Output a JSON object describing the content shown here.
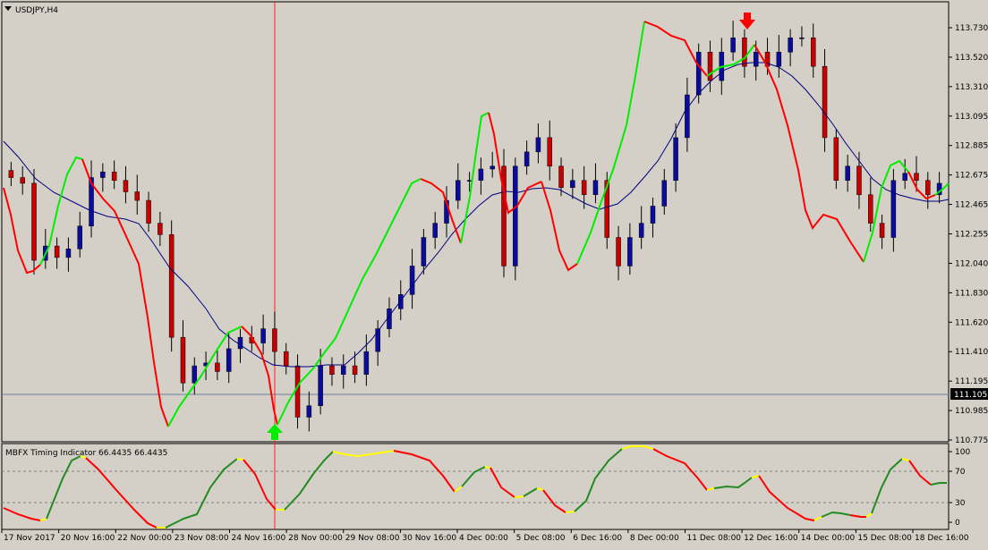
{
  "window": {
    "title": "USDJPY,H4"
  },
  "colors": {
    "background": "#d4d0c8",
    "bull": "#0b0b9e",
    "bear": "#c80000",
    "wick": "#000000",
    "ma": "#00007f",
    "signal_up": "#00ee00",
    "signal_down": "#ff0000",
    "osc_up": "#228b22",
    "osc_down": "#ff0000",
    "osc_flat": "#ffff00"
  },
  "price_axis": {
    "labels": [
      "113.730",
      "113.520",
      "113.310",
      "113.095",
      "112.885",
      "112.675",
      "112.465",
      "112.255",
      "112.040",
      "111.830",
      "111.620",
      "111.410",
      "111.195",
      "110.985",
      "110.775"
    ],
    "current_price": "111.105"
  },
  "indicator": {
    "title": "MBFX Timing Indicator 66.4435 66.4435",
    "levels": [
      "100",
      "70",
      "30",
      "0"
    ]
  },
  "time_axis": {
    "labels": [
      "17 Nov 2017",
      "20 Nov 16:00",
      "22 Nov 00:00",
      "23 Nov 08:00",
      "24 Nov 16:00",
      "28 Nov 00:00",
      "29 Nov 08:00",
      "30 Nov 16:00",
      "4 Dec 00:00",
      "5 Dec 08:00",
      "6 Dec 16:00",
      "8 Dec 00:00",
      "11 Dec 08:00",
      "12 Dec 16:00",
      "14 Dec 00:00",
      "15 Dec 08:00",
      "18 Dec 16:00"
    ]
  },
  "signals": [
    {
      "name": "buy-arrow-icon",
      "direction": "up"
    },
    {
      "name": "sell-arrow-icon",
      "direction": "down"
    }
  ],
  "chart_data": {
    "type": "candlestick",
    "symbol": "USDJPY",
    "timeframe": "H4",
    "price_range": [
      110.78,
      113.84
    ],
    "current_price": 111.105,
    "candles_close": [
      112.62,
      112.58,
      112.04,
      112.14,
      112.06,
      112.12,
      112.28,
      112.62,
      112.66,
      112.6,
      112.52,
      112.46,
      112.3,
      112.22,
      111.5,
      111.18,
      111.3,
      111.32,
      111.26,
      111.42,
      111.5,
      111.46,
      111.56,
      111.4,
      111.3,
      110.94,
      111.02,
      111.3,
      111.24,
      111.3,
      111.24,
      111.4,
      111.56,
      111.7,
      111.8,
      112.0,
      112.2,
      112.3,
      112.46,
      112.6,
      112.6,
      112.68,
      112.7,
      112.0,
      112.7,
      112.8,
      112.9,
      112.7,
      112.55,
      112.6,
      112.5,
      112.6,
      112.2,
      112.0,
      112.2,
      112.3,
      112.42,
      112.6,
      112.9,
      113.2,
      113.5,
      113.3,
      113.5,
      113.6,
      113.4,
      113.5,
      113.4,
      113.5,
      113.6,
      113.6,
      113.4,
      112.9,
      112.6,
      112.7,
      112.5,
      112.3,
      112.2,
      112.6,
      112.65,
      112.6,
      112.5,
      112.58
    ]
  }
}
